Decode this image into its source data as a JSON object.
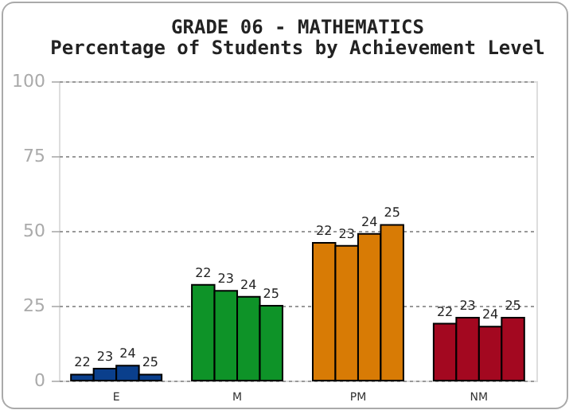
{
  "chart_data": {
    "type": "bar",
    "title": "GRADE 06 - MATHEMATICS",
    "subtitle": "Percentage of Students by Achievement Level",
    "categories": [
      "E",
      "M",
      "PM",
      "NM"
    ],
    "series": [
      {
        "name": "22",
        "colors": [
          "#0a3f8c",
          "#0e9328",
          "#d87b05",
          "#a30820"
        ],
        "values": [
          2,
          32,
          46,
          19
        ]
      },
      {
        "name": "23",
        "colors": [
          "#0a3f8c",
          "#0e9328",
          "#d87b05",
          "#a30820"
        ],
        "values": [
          4,
          30,
          45,
          21
        ]
      },
      {
        "name": "24",
        "colors": [
          "#0a3f8c",
          "#0e9328",
          "#d87b05",
          "#a30820"
        ],
        "values": [
          5,
          28,
          49,
          18
        ]
      },
      {
        "name": "25",
        "colors": [
          "#0a3f8c",
          "#0e9328",
          "#d87b05",
          "#a30820"
        ],
        "values": [
          2,
          25,
          52,
          21
        ]
      }
    ],
    "ylim": [
      0,
      100
    ],
    "yticks": [
      0,
      25,
      50,
      75,
      100
    ],
    "grid": "y",
    "legend": false
  }
}
